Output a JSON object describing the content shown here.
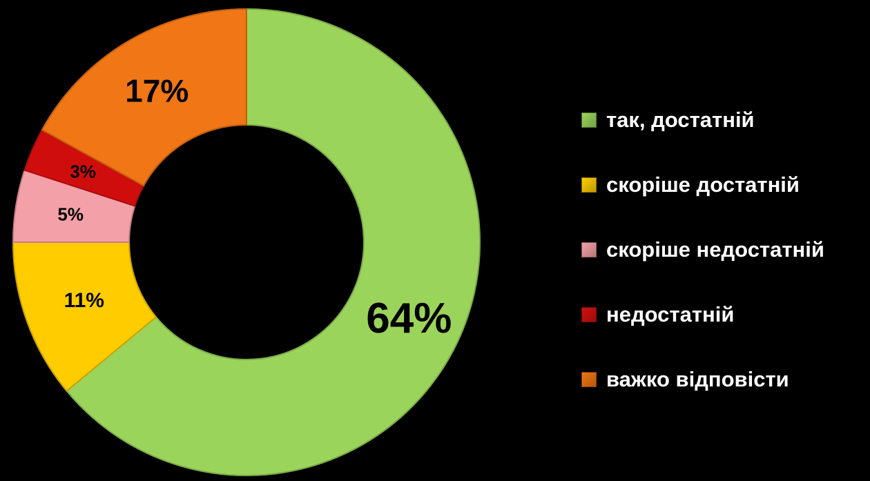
{
  "chart_data": {
    "type": "pie",
    "categories": [
      "так, достатній",
      "скоріше достатній",
      "скоріше недостатній",
      "недостатній",
      "важко відповісти"
    ],
    "values": [
      64,
      11,
      5,
      3,
      17
    ],
    "labels": [
      "64%",
      "11%",
      "5%",
      "3%",
      "17%"
    ],
    "colors": [
      "#9BD45A",
      "#FFCC00",
      "#F4A0A8",
      "#D01010",
      "#F07614"
    ],
    "donut": true,
    "legend_position": "right"
  }
}
